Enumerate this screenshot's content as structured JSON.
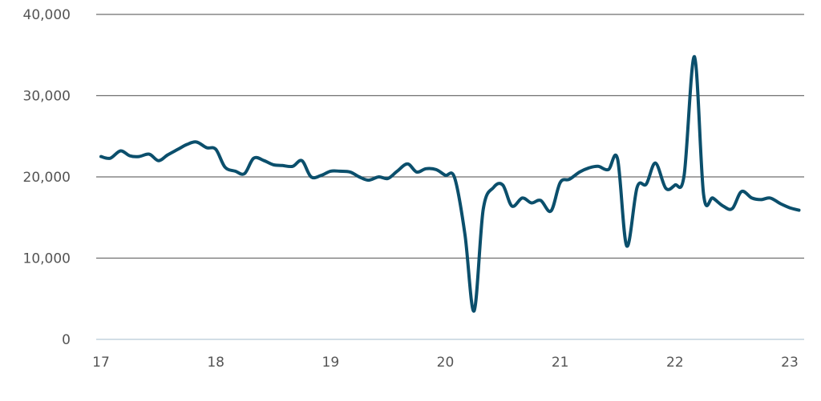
{
  "chart_data": {
    "type": "line",
    "title": "",
    "xlabel": "",
    "ylabel": "",
    "x_ticks": [
      "17",
      "18",
      "19",
      "20",
      "21",
      "22",
      "23"
    ],
    "y_ticks": [
      "0",
      "10,000",
      "20,000",
      "30,000",
      "40,000"
    ],
    "xlim": [
      17,
      23.1
    ],
    "ylim": [
      0,
      40000
    ],
    "grid": true,
    "legend": "none",
    "colors": {
      "series": "#0b4f6c",
      "grid": "#6f6f6f",
      "zero_axis": "#b7c9d6",
      "text": "#555555"
    },
    "series": [
      {
        "x": [
          17.0,
          17.08,
          17.17,
          17.25,
          17.33,
          17.42,
          17.5,
          17.58,
          17.67,
          17.75,
          17.83,
          17.92,
          18.0,
          18.08,
          18.17,
          18.25,
          18.33,
          18.42,
          18.5,
          18.58,
          18.67,
          18.75,
          18.83,
          18.92,
          19.0,
          19.08,
          19.17,
          19.25,
          19.33,
          19.42,
          19.5,
          19.58,
          19.67,
          19.75,
          19.83,
          19.92,
          20.0,
          20.08,
          20.17,
          20.25,
          20.33,
          20.42,
          20.5,
          20.58,
          20.67,
          20.75,
          20.83,
          20.92,
          21.0,
          21.08,
          21.17,
          21.25,
          21.33,
          21.42,
          21.5,
          21.58,
          21.67,
          21.75,
          21.83,
          21.92,
          22.0,
          22.08,
          22.17,
          22.25,
          22.33,
          22.42,
          22.5,
          22.58,
          22.67,
          22.75,
          22.83,
          22.92,
          23.0,
          23.08
        ],
        "values": [
          22500,
          22300,
          23200,
          22600,
          22500,
          22800,
          22000,
          22700,
          23400,
          24000,
          24300,
          23600,
          23400,
          21200,
          20700,
          20400,
          22300,
          22000,
          21500,
          21400,
          21300,
          22000,
          20000,
          20200,
          20700,
          20700,
          20600,
          20000,
          19600,
          20000,
          19800,
          20700,
          21600,
          20600,
          21000,
          20900,
          20200,
          19900,
          13000,
          3500,
          16000,
          18700,
          19000,
          16400,
          17400,
          16800,
          17100,
          15800,
          19300,
          19700,
          20600,
          21100,
          21300,
          20900,
          22200,
          11500,
          18700,
          19100,
          21700,
          18600,
          19000,
          20200,
          34800,
          17800,
          17400,
          16400,
          16100,
          18200,
          17400,
          17200,
          17400,
          16700,
          16200,
          15900
        ]
      }
    ]
  }
}
